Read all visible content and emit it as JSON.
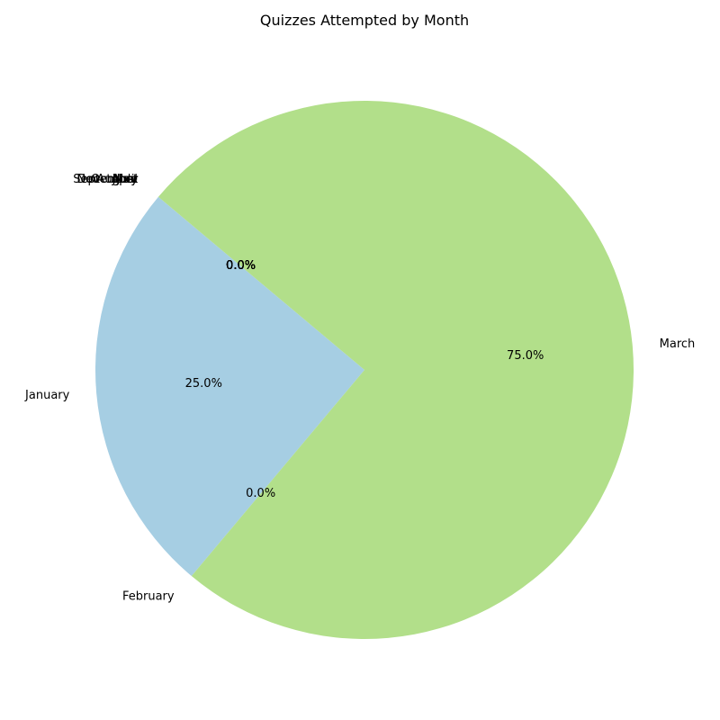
{
  "chart_data": {
    "type": "pie",
    "title": "Quizzes Attempted by Month",
    "slices": [
      {
        "label": "January",
        "value": 25.0,
        "pct_label": "25.0%",
        "color": "#a6cee3"
      },
      {
        "label": "February",
        "value": 0.0,
        "pct_label": "0.0%",
        "color": "#1f78b4"
      },
      {
        "label": "March",
        "value": 75.0,
        "pct_label": "75.0%",
        "color": "#b2df8a"
      },
      {
        "label": "April",
        "value": 0.0,
        "pct_label": "0.0%",
        "color": "#33a02c"
      },
      {
        "label": "May",
        "value": 0.0,
        "pct_label": "0.0%",
        "color": "#fb9a99"
      },
      {
        "label": "June",
        "value": 0.0,
        "pct_label": "0.0%",
        "color": "#e31a1c"
      },
      {
        "label": "July",
        "value": 0.0,
        "pct_label": "0.0%",
        "color": "#fdbf6f"
      },
      {
        "label": "August",
        "value": 0.0,
        "pct_label": "0.0%",
        "color": "#ff7f00"
      },
      {
        "label": "September",
        "value": 0.0,
        "pct_label": "0.0%",
        "color": "#cab2d6"
      },
      {
        "label": "October",
        "value": 0.0,
        "pct_label": "0.0%",
        "color": "#6a3d9a"
      },
      {
        "label": "November",
        "value": 0.0,
        "pct_label": "0.0%",
        "color": "#ffff99"
      },
      {
        "label": "December",
        "value": 0.0,
        "pct_label": "0.0%",
        "color": "#b15928"
      }
    ],
    "start_angle_deg": 140,
    "direction": "counterclockwise"
  }
}
